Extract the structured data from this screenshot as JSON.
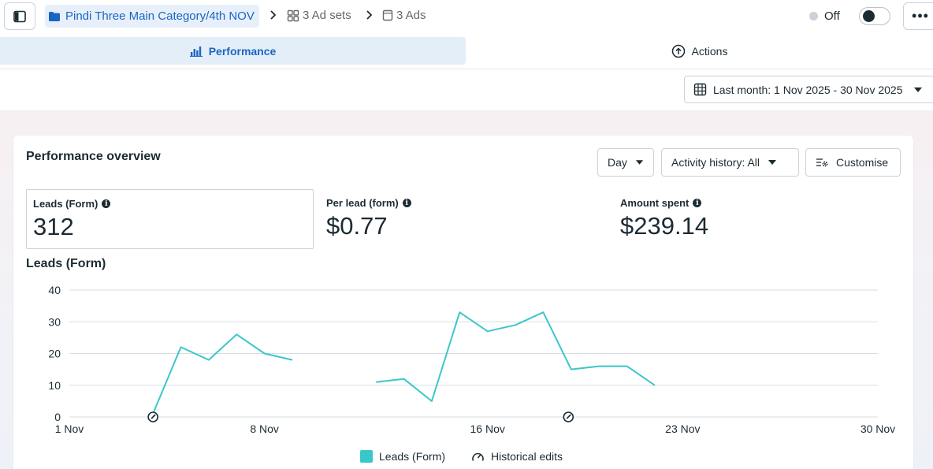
{
  "breadcrumb": {
    "campaign": "Pindi Three Main Category/4th NOV",
    "ad_sets": "3 Ad sets",
    "ads": "3 Ads"
  },
  "status": {
    "label": "Off",
    "toggle_on": false
  },
  "tabs": [
    {
      "label": "Performance",
      "icon": "bar-chart-icon",
      "active": true
    },
    {
      "label": "Actions",
      "icon": "arrow-up-circle-icon",
      "active": false
    }
  ],
  "date_range": {
    "label": "Last month: 1 Nov 2025 - 30 Nov 2025"
  },
  "overview": {
    "title": "Performance overview",
    "granularity": "Day",
    "activity_history": "Activity history: All",
    "customise": "Customise"
  },
  "metrics": [
    {
      "label": "Leads (Form)",
      "value": "312",
      "selected": true
    },
    {
      "label": "Per lead (form)",
      "value": "$0.77",
      "selected": false
    },
    {
      "label": "Amount spent",
      "value": "$239.14",
      "selected": false
    }
  ],
  "chart_data": {
    "type": "line",
    "title": "Leads (Form)",
    "ylim": [
      0,
      40
    ],
    "y_ticks": [
      0,
      10,
      20,
      30,
      40
    ],
    "x_ticks": [
      {
        "day": 1,
        "label": "1 Nov"
      },
      {
        "day": 8,
        "label": "8 Nov"
      },
      {
        "day": 16,
        "label": "16 Nov"
      },
      {
        "day": 23,
        "label": "23 Nov"
      },
      {
        "day": 30,
        "label": "30 Nov"
      }
    ],
    "x_range": [
      1,
      30
    ],
    "series": [
      {
        "name": "Leads (Form)",
        "color": "#3ac7cb",
        "segments": [
          [
            [
              4,
              1
            ],
            [
              5,
              22
            ],
            [
              6,
              18
            ],
            [
              7,
              26
            ],
            [
              8,
              20
            ],
            [
              9,
              18
            ]
          ],
          [
            [
              12,
              11
            ],
            [
              13,
              12
            ],
            [
              14,
              5
            ],
            [
              15,
              33
            ],
            [
              16,
              27
            ],
            [
              17,
              29
            ],
            [
              18,
              33
            ],
            [
              19,
              15
            ],
            [
              20,
              16
            ],
            [
              21,
              16
            ],
            [
              22,
              10
            ]
          ]
        ]
      }
    ],
    "historical_edit_days": [
      4,
      18.9
    ],
    "legend": [
      "Leads (Form)",
      "Historical edits"
    ]
  }
}
